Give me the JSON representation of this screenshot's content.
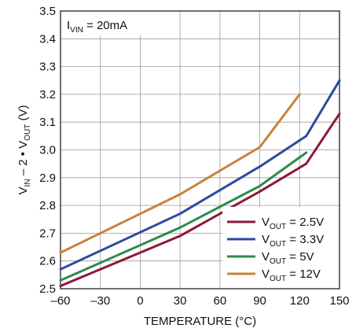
{
  "chart_data": {
    "type": "line",
    "title": "",
    "xlabel": "TEMPERATURE (°C)",
    "ylabel": {
      "main": "V",
      "sub1": "IN",
      "mid": " – 2 • V",
      "sub2": "OUT",
      "tail": " (V)"
    },
    "xlim": [
      -60,
      150
    ],
    "ylim": [
      2.5,
      3.5
    ],
    "x_ticks": [
      -60,
      -30,
      0,
      30,
      60,
      90,
      120,
      150
    ],
    "x_tick_labels": [
      "–60",
      "–30",
      "0",
      "30",
      "60",
      "90",
      "120",
      "150"
    ],
    "y_ticks": [
      2.5,
      2.6,
      2.7,
      2.8,
      2.9,
      3.0,
      3.1,
      3.2,
      3.3,
      3.4,
      3.5
    ],
    "y_tick_labels": [
      "2.5",
      "2.6",
      "2.7",
      "2.8",
      "2.9",
      "3.0",
      "3.1",
      "3.2",
      "3.3",
      "3.4",
      "3.5"
    ],
    "grid": true,
    "legend_position": "bottom-right",
    "annotation": {
      "main": "I",
      "sub": "VIN",
      "tail": " = 20mA"
    },
    "series": [
      {
        "label_main": "V",
        "label_sub": "OUT",
        "label_tail": " = 2.5V",
        "color": "#8b1a3a",
        "x": [
          -60,
          30,
          90,
          125,
          150
        ],
        "y": [
          2.51,
          2.69,
          2.85,
          2.95,
          3.13
        ]
      },
      {
        "label_main": "V",
        "label_sub": "OUT",
        "label_tail": " = 3.3V",
        "color": "#2e4aa0",
        "x": [
          -60,
          30,
          90,
          125,
          150
        ],
        "y": [
          2.57,
          2.77,
          2.94,
          3.05,
          3.25
        ]
      },
      {
        "label_main": "V",
        "label_sub": "OUT",
        "label_tail": " = 5V",
        "color": "#2e8b4a",
        "x": [
          -60,
          30,
          90,
          125
        ],
        "y": [
          2.53,
          2.72,
          2.87,
          2.99
        ]
      },
      {
        "label_main": "V",
        "label_sub": "OUT",
        "label_tail": " = 12V",
        "color": "#c8823a",
        "x": [
          -60,
          30,
          90,
          120
        ],
        "y": [
          2.63,
          2.84,
          3.01,
          3.2
        ]
      }
    ]
  }
}
